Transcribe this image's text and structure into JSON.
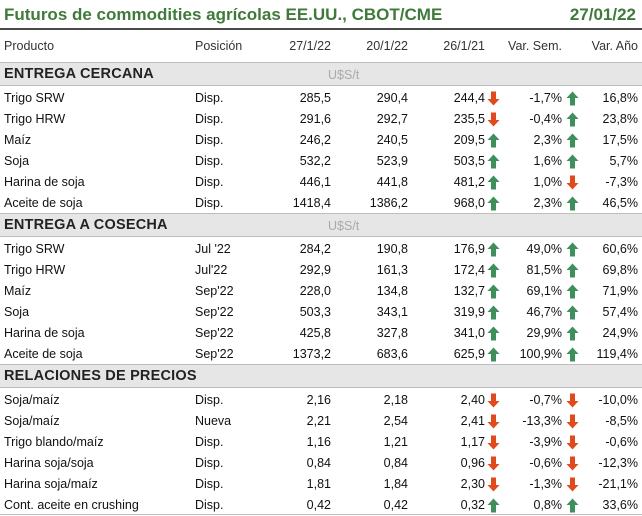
{
  "title": "Futuros de commodities agrícolas EE.UU., CBOT/CME",
  "date": "27/01/22",
  "columns": {
    "product": "Producto",
    "position": "Posición",
    "d1": "27/1/22",
    "d2": "20/1/22",
    "d3": "26/1/21",
    "week": "Var. Sem.",
    "year": "Var. Año"
  },
  "colors": {
    "title": "#3f7a3a",
    "up": "#3f8f5c",
    "down": "#e04a1c",
    "section_bg": "#e6e6e6"
  },
  "icons": {
    "up": "arrow-up-icon",
    "down": "arrow-down-icon"
  },
  "sections": [
    {
      "title": "ENTREGA CERCANA",
      "unit": "U$S/t",
      "rows": [
        {
          "product": "Trigo SRW",
          "position": "Disp.",
          "v1": "285,5",
          "v2": "290,4",
          "v3": "244,4",
          "week": "-1,7%",
          "week_dir": "down",
          "year": "16,8%",
          "year_dir": "up"
        },
        {
          "product": "Trigo HRW",
          "position": "Disp.",
          "v1": "291,6",
          "v2": "292,7",
          "v3": "235,5",
          "week": "-0,4%",
          "week_dir": "down",
          "year": "23,8%",
          "year_dir": "up"
        },
        {
          "product": "Maíz",
          "position": "Disp.",
          "v1": "246,2",
          "v2": "240,5",
          "v3": "209,5",
          "week": "2,3%",
          "week_dir": "up",
          "year": "17,5%",
          "year_dir": "up"
        },
        {
          "product": "Soja",
          "position": "Disp.",
          "v1": "532,2",
          "v2": "523,9",
          "v3": "503,5",
          "week": "1,6%",
          "week_dir": "up",
          "year": "5,7%",
          "year_dir": "up"
        },
        {
          "product": "Harina de soja",
          "position": "Disp.",
          "v1": "446,1",
          "v2": "441,8",
          "v3": "481,2",
          "week": "1,0%",
          "week_dir": "up",
          "year": "-7,3%",
          "year_dir": "down"
        },
        {
          "product": "Aceite de soja",
          "position": "Disp.",
          "v1": "1418,4",
          "v2": "1386,2",
          "v3": "968,0",
          "week": "2,3%",
          "week_dir": "up",
          "year": "46,5%",
          "year_dir": "up"
        }
      ]
    },
    {
      "title": "ENTREGA A COSECHA",
      "unit": "U$S/t",
      "rows": [
        {
          "product": "Trigo SRW",
          "position": "Jul '22",
          "v1": "284,2",
          "v2": "190,8",
          "v3": "176,9",
          "week": "49,0%",
          "week_dir": "up",
          "year": "60,6%",
          "year_dir": "up"
        },
        {
          "product": "Trigo HRW",
          "position": "Jul'22",
          "v1": "292,9",
          "v2": "161,3",
          "v3": "172,4",
          "week": "81,5%",
          "week_dir": "up",
          "year": "69,8%",
          "year_dir": "up"
        },
        {
          "product": "Maíz",
          "position": "Sep'22",
          "v1": "228,0",
          "v2": "134,8",
          "v3": "132,7",
          "week": "69,1%",
          "week_dir": "up",
          "year": "71,9%",
          "year_dir": "up"
        },
        {
          "product": "Soja",
          "position": "Sep'22",
          "v1": "503,3",
          "v2": "343,1",
          "v3": "319,9",
          "week": "46,7%",
          "week_dir": "up",
          "year": "57,4%",
          "year_dir": "up"
        },
        {
          "product": "Harina de soja",
          "position": "Sep'22",
          "v1": "425,8",
          "v2": "327,8",
          "v3": "341,0",
          "week": "29,9%",
          "week_dir": "up",
          "year": "24,9%",
          "year_dir": "up"
        },
        {
          "product": "Aceite de soja",
          "position": "Sep'22",
          "v1": "1373,2",
          "v2": "683,6",
          "v3": "625,9",
          "week": "100,9%",
          "week_dir": "up",
          "year": "119,4%",
          "year_dir": "up"
        }
      ]
    },
    {
      "title": "RELACIONES DE PRECIOS",
      "unit": "",
      "rows": [
        {
          "product": "Soja/maíz",
          "position": "Disp.",
          "v1": "2,16",
          "v2": "2,18",
          "v3": "2,40",
          "week": "-0,7%",
          "week_dir": "down",
          "year": "-10,0%",
          "year_dir": "down"
        },
        {
          "product": "Soja/maíz",
          "position": "Nueva",
          "v1": "2,21",
          "v2": "2,54",
          "v3": "2,41",
          "week": "-13,3%",
          "week_dir": "down",
          "year": "-8,5%",
          "year_dir": "down"
        },
        {
          "product": "Trigo blando/maíz",
          "position": "Disp.",
          "v1": "1,16",
          "v2": "1,21",
          "v3": "1,17",
          "week": "-3,9%",
          "week_dir": "down",
          "year": "-0,6%",
          "year_dir": "down"
        },
        {
          "product": "Harina soja/soja",
          "position": "Disp.",
          "v1": "0,84",
          "v2": "0,84",
          "v3": "0,96",
          "week": "-0,6%",
          "week_dir": "down",
          "year": "-12,3%",
          "year_dir": "down"
        },
        {
          "product": "Harina soja/maíz",
          "position": "Disp.",
          "v1": "1,81",
          "v2": "1,84",
          "v3": "2,30",
          "week": "-1,3%",
          "week_dir": "down",
          "year": "-21,1%",
          "year_dir": "down"
        },
        {
          "product": "Cont. aceite en crushing",
          "position": "Disp.",
          "v1": "0,42",
          "v2": "0,42",
          "v3": "0,32",
          "week": "0,8%",
          "week_dir": "up",
          "year": "33,6%",
          "year_dir": "up"
        }
      ]
    }
  ]
}
